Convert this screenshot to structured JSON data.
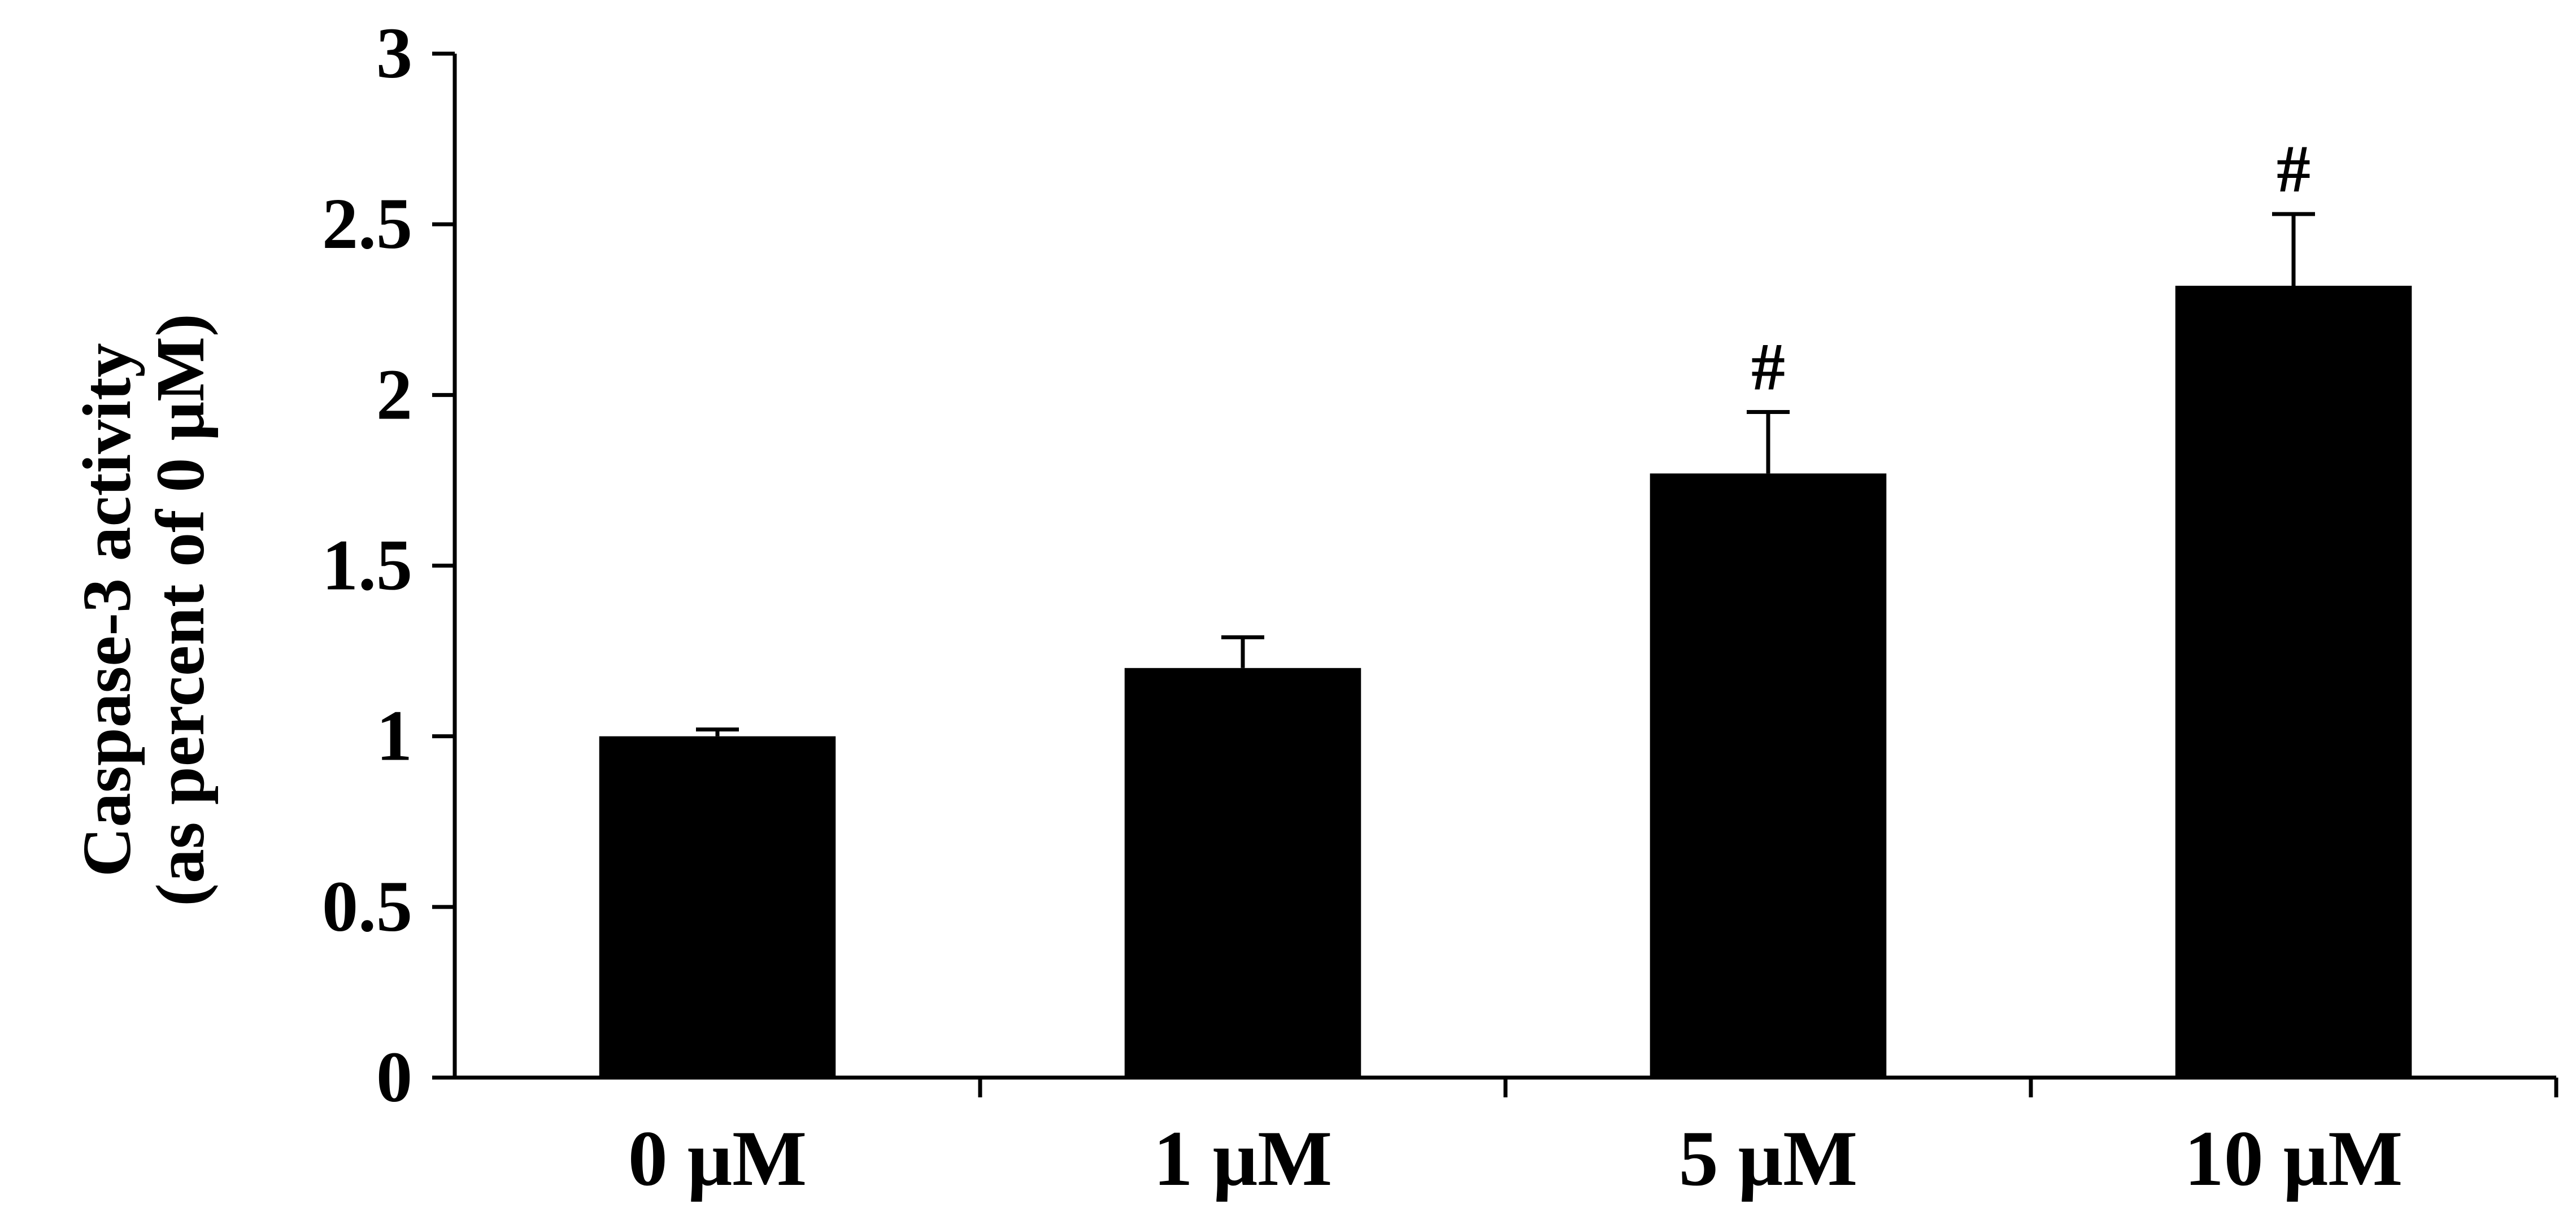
{
  "chart_data": {
    "type": "bar",
    "categories": [
      "0 μM",
      "1 μM",
      "5 μM",
      "10 μM"
    ],
    "values": [
      1.0,
      1.2,
      1.77,
      2.32
    ],
    "errors": [
      0.02,
      0.09,
      0.18,
      0.21
    ],
    "annotations": [
      "",
      "",
      "#",
      "#"
    ],
    "ylabel_line1": "Caspase-3 activity",
    "ylabel_line2": "(as percent of 0 μM)",
    "yticks": [
      "0",
      "0.5",
      "1",
      "1.5",
      "2",
      "2.5",
      "3"
    ],
    "ylim": [
      0,
      3
    ],
    "bar_color": "#000000",
    "grid": false
  }
}
